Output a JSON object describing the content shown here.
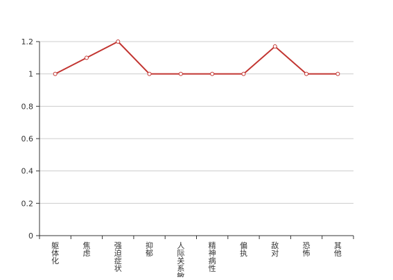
{
  "chart_data": {
    "type": "line",
    "title": "",
    "xlabel": "",
    "ylabel": "",
    "categories": [
      "躯体化",
      "焦虑",
      "强迫症状",
      "抑郁",
      "人际关系敏感",
      "精神病性",
      "偏执",
      "敌对",
      "恐怖",
      "其他"
    ],
    "series": [
      {
        "values": [
          1,
          1.1,
          1.2,
          1,
          1,
          1,
          1,
          1.17,
          1,
          1
        ]
      }
    ],
    "ylim": [
      0,
      1.2
    ],
    "yticks": [
      "0",
      "0.2",
      "0.4",
      "0.6",
      "0.8",
      "1",
      "1.2"
    ],
    "grid": true,
    "legend": "none",
    "colors": {
      "line": "#c23531",
      "grid": "#cccccc",
      "axis": "#333333",
      "text": "#333333",
      "marker_fill": "#ffffff"
    }
  }
}
